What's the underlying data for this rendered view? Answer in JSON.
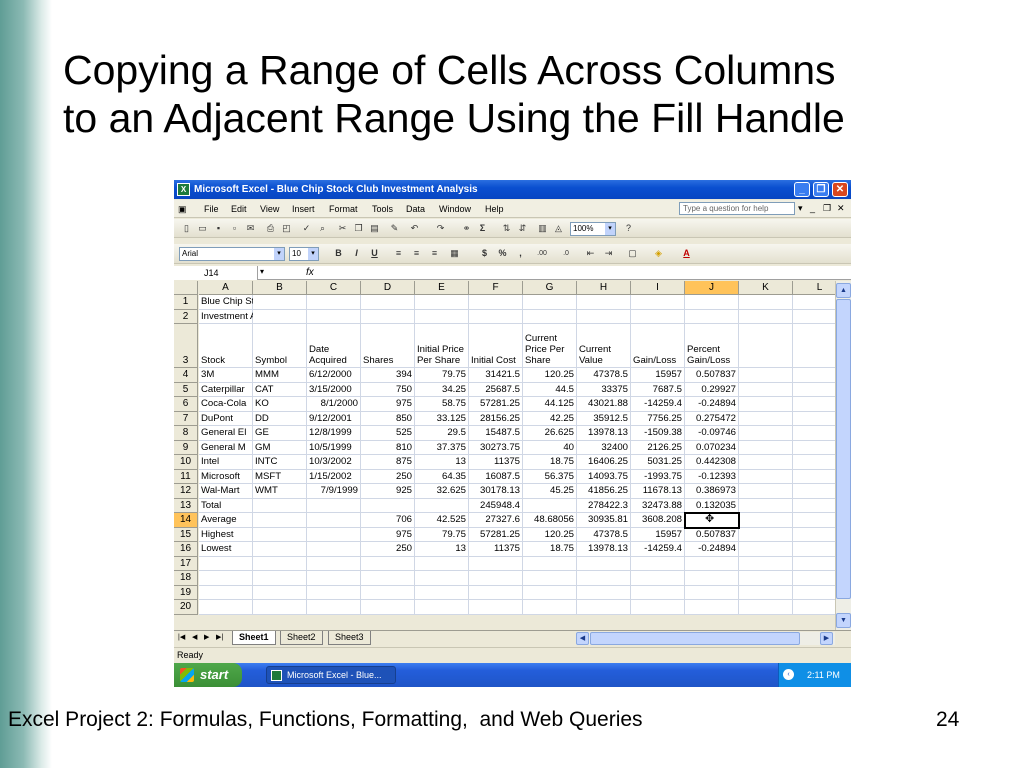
{
  "slide": {
    "title_line1": "Copying a Range of Cells Across Columns",
    "title_line2": "to an Adjacent Range Using the Fill Handle",
    "footer": "Excel Project 2: Formulas, Functions, Formatting,  and Web Queries",
    "page_number": "24"
  },
  "window": {
    "title": "Microsoft Excel - Blue Chip Stock Club Investment Analysis",
    "app_icon": "excel-icon",
    "controls": [
      "minimize-icon",
      "restore-icon",
      "close-icon"
    ]
  },
  "menubar": {
    "items": [
      "File",
      "Edit",
      "View",
      "Insert",
      "Format",
      "Tools",
      "Data",
      "Window",
      "Help"
    ],
    "ask_placeholder": "Type a question for help"
  },
  "toolbar": {
    "zoom": "100%",
    "font_name": "Arial",
    "font_size": "10",
    "bold": "B",
    "italic": "I",
    "underline": "U",
    "currency": "$",
    "percent": "%",
    "comma": ",",
    "inc_decimal": ".00",
    "dec_decimal": ".0",
    "autosum": "Σ"
  },
  "formula_bar": {
    "name_box": "J14",
    "fx": "fx"
  },
  "sheet": {
    "columns": [
      "A",
      "B",
      "C",
      "D",
      "E",
      "F",
      "G",
      "H",
      "I",
      "J",
      "K",
      "L"
    ],
    "selected_column": "J",
    "selected_row": "14",
    "row_numbers": [
      "1",
      "2",
      "3",
      "4",
      "5",
      "6",
      "7",
      "8",
      "9",
      "10",
      "11",
      "12",
      "13",
      "14",
      "15",
      "16",
      "17",
      "18",
      "19",
      "20"
    ],
    "rows": [
      [
        "Blue Chip Stock Club",
        "",
        "",
        "",
        "",
        "",
        "",
        "",
        "",
        "",
        "",
        ""
      ],
      [
        "Investment Analysis",
        "",
        "",
        "",
        "",
        "",
        "",
        "",
        "",
        "",
        "",
        ""
      ],
      [
        "Stock",
        "Symbol",
        "Date Acquired",
        "Shares",
        "Initial Price Per Share",
        "Initial Cost",
        "Current Price Per Share",
        "Current Value",
        "Gain/Loss",
        "Percent Gain/Loss",
        "",
        ""
      ],
      [
        "3M",
        "MMM",
        "6/12/2000",
        "394",
        "79.75",
        "31421.5",
        "120.25",
        "47378.5",
        "15957",
        "0.507837",
        "",
        ""
      ],
      [
        "Caterpillar",
        "CAT",
        "3/15/2000",
        "750",
        "34.25",
        "25687.5",
        "44.5",
        "33375",
        "7687.5",
        "0.29927",
        "",
        ""
      ],
      [
        "Coca-Cola",
        "KO",
        "8/1/2000",
        "975",
        "58.75",
        "57281.25",
        "44.125",
        "43021.88",
        "-14259.4",
        "-0.24894",
        "",
        ""
      ],
      [
        "DuPont",
        "DD",
        "9/12/2001",
        "850",
        "33.125",
        "28156.25",
        "42.25",
        "35912.5",
        "7756.25",
        "0.275472",
        "",
        ""
      ],
      [
        "General El",
        "GE",
        "12/8/1999",
        "525",
        "29.5",
        "15487.5",
        "26.625",
        "13978.13",
        "-1509.38",
        "-0.09746",
        "",
        ""
      ],
      [
        "General M",
        "GM",
        "10/5/1999",
        "810",
        "37.375",
        "30273.75",
        "40",
        "32400",
        "2126.25",
        "0.070234",
        "",
        ""
      ],
      [
        "Intel",
        "INTC",
        "10/3/2002",
        "875",
        "13",
        "11375",
        "18.75",
        "16406.25",
        "5031.25",
        "0.442308",
        "",
        ""
      ],
      [
        "Microsoft",
        "MSFT",
        "1/15/2002",
        "250",
        "64.35",
        "16087.5",
        "56.375",
        "14093.75",
        "-1993.75",
        "-0.12393",
        "",
        ""
      ],
      [
        "Wal-Mart",
        "WMT",
        "7/9/1999",
        "925",
        "32.625",
        "30178.13",
        "45.25",
        "41856.25",
        "11678.13",
        "0.386973",
        "",
        ""
      ],
      [
        "Total",
        "",
        "",
        "",
        "",
        "245948.4",
        "",
        "278422.3",
        "32473.88",
        "0.132035",
        "",
        ""
      ],
      [
        "Average",
        "",
        "",
        "706",
        "42.525",
        "27327.6",
        "48.68056",
        "30935.81",
        "3608.208",
        "",
        "",
        ""
      ],
      [
        "Highest",
        "",
        "",
        "975",
        "79.75",
        "57281.25",
        "120.25",
        "47378.5",
        "15957",
        "0.507837",
        "",
        ""
      ],
      [
        "Lowest",
        "",
        "",
        "250",
        "13",
        "11375",
        "18.75",
        "13978.13",
        "-14259.4",
        "-0.24894",
        "",
        ""
      ],
      [
        "",
        "",
        "",
        "",
        "",
        "",
        "",
        "",
        "",
        "",
        "",
        ""
      ],
      [
        "",
        "",
        "",
        "",
        "",
        "",
        "",
        "",
        "",
        "",
        "",
        ""
      ],
      [
        "",
        "",
        "",
        "",
        "",
        "",
        "",
        "",
        "",
        "",
        "",
        ""
      ],
      [
        "",
        "",
        "",
        "",
        "",
        "",
        "",
        "",
        "",
        "",
        "",
        ""
      ]
    ],
    "tabs": [
      "Sheet1",
      "Sheet2",
      "Sheet3"
    ],
    "active_tab": "Sheet1"
  },
  "status": "Ready",
  "taskbar": {
    "start": "start",
    "task_button": "Microsoft Excel - Blue...",
    "clock": "2:11 PM"
  }
}
